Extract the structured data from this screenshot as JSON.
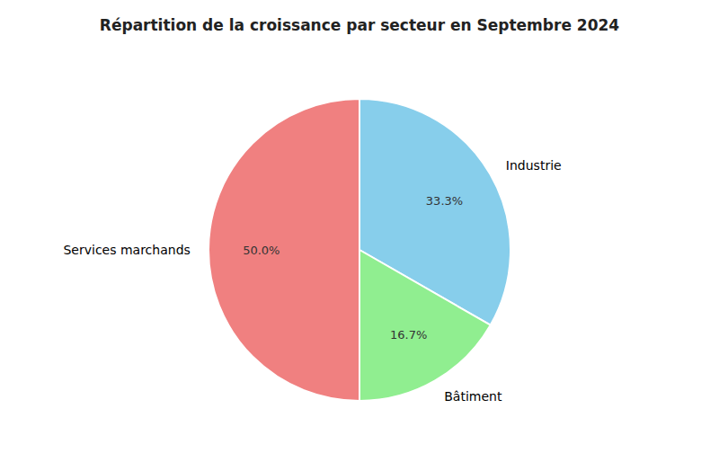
{
  "chart_data": {
    "type": "pie",
    "title": "Répartition de la croissance par secteur en Septembre 2024",
    "categories": [
      "Industrie",
      "Bâtiment",
      "Services marchands"
    ],
    "values": [
      33.3,
      16.7,
      50.0
    ],
    "value_labels": [
      "33.3%",
      "16.7%",
      "50.0%"
    ],
    "colors": [
      "#87CEEB",
      "#90EE90",
      "#F08080"
    ],
    "data_labels": true
  }
}
